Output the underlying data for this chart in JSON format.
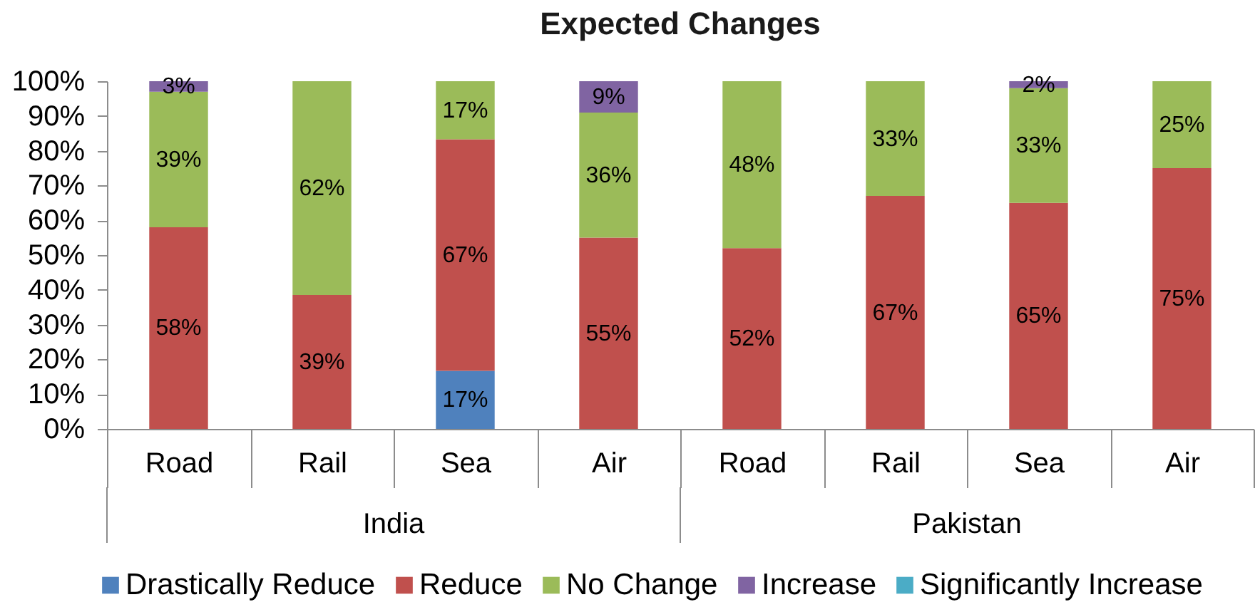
{
  "chart_data": {
    "type": "bar",
    "title": "Expected Changes",
    "stacked": true,
    "categories": [
      "Road",
      "Rail",
      "Sea",
      "Air",
      "Road",
      "Rail",
      "Sea",
      "Air"
    ],
    "annotations": [
      "India",
      "Pakistan"
    ],
    "series": [
      {
        "name": "Drastically Reduce",
        "color": "#4f81bd",
        "values": [
          null,
          null,
          16.7,
          null,
          null,
          null,
          null,
          null
        ],
        "value_labels": [
          null,
          null,
          "17%",
          null,
          null,
          null,
          null,
          null
        ]
      },
      {
        "name": "Reduce",
        "color": "#c0504d",
        "values": [
          58,
          38.5,
          66.6,
          55,
          52,
          67,
          65,
          75
        ],
        "value_labels": [
          "58%",
          "39%",
          "67%",
          "55%",
          "52%",
          "67%",
          "65%",
          "75%"
        ]
      },
      {
        "name": "No Change",
        "color": "#9bbb59",
        "values": [
          39,
          61.5,
          16.7,
          36,
          48,
          33,
          33,
          25
        ],
        "value_labels": [
          "39%",
          "62%",
          "17%",
          "36%",
          "48%",
          "33%",
          "33%",
          "25%"
        ]
      },
      {
        "name": "Increase",
        "color": "#8064a2",
        "values": [
          3,
          null,
          null,
          9,
          null,
          null,
          2,
          null
        ],
        "value_labels": [
          "3%",
          null,
          null,
          "9%",
          null,
          null,
          "2%",
          null
        ]
      },
      {
        "name": "Significantly Increase",
        "color": "#4bacc6",
        "values": [
          null,
          null,
          null,
          null,
          null,
          null,
          null,
          null
        ]
      }
    ],
    "ylim": [
      0,
      100
    ],
    "yticks": [
      {
        "value": 0,
        "label": "0%"
      },
      {
        "value": 10,
        "label": "10%"
      },
      {
        "value": 20,
        "label": "20%"
      },
      {
        "value": 30,
        "label": "30%"
      },
      {
        "value": 40,
        "label": "40%"
      },
      {
        "value": 50,
        "label": "50%"
      },
      {
        "value": 60,
        "label": "60%"
      },
      {
        "value": 70,
        "label": "70%"
      },
      {
        "value": 80,
        "label": "80%"
      },
      {
        "value": 90,
        "label": "90%"
      },
      {
        "value": 100,
        "label": "100%"
      }
    ],
    "legend": "bottom"
  }
}
